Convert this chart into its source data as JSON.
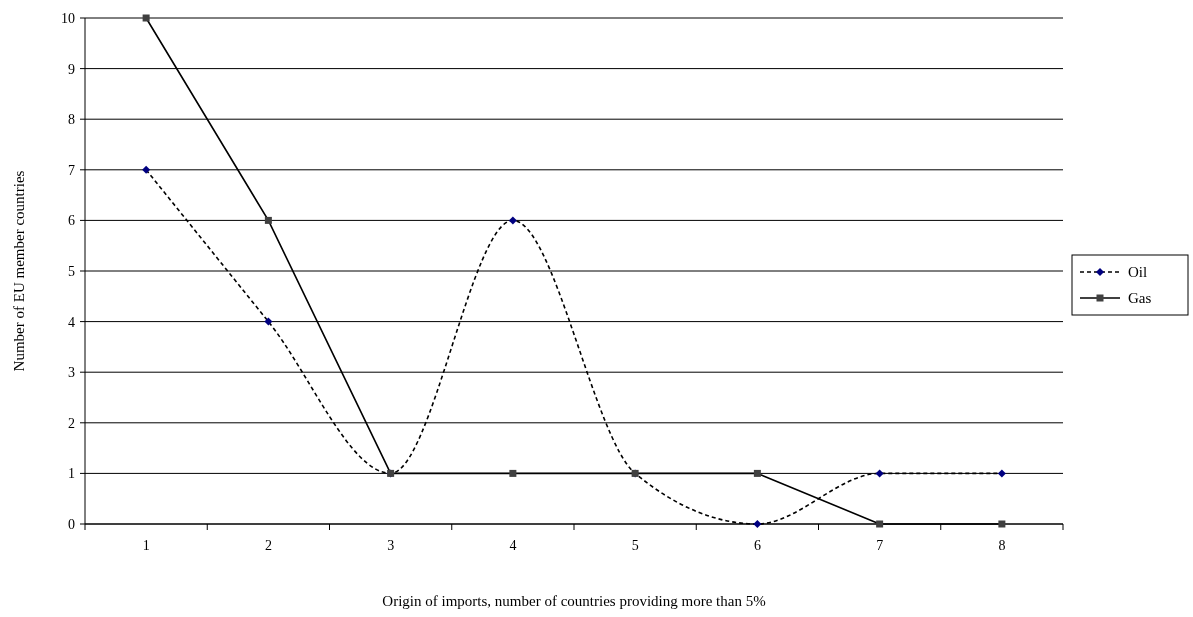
{
  "chart_data": {
    "type": "line",
    "xlabel": "Origin of imports, number of countries providing more than 5%",
    "ylabel": "Number of EU member countries",
    "categories": [
      "1",
      "2",
      "3",
      "4",
      "5",
      "6",
      "7",
      "8"
    ],
    "ylim": [
      0,
      10
    ],
    "yticks": [
      0,
      1,
      2,
      3,
      4,
      5,
      6,
      7,
      8,
      9,
      10
    ],
    "grid": "y",
    "legend": "right",
    "series": [
      {
        "name": "Oil",
        "color": "#000080",
        "values": [
          7,
          4,
          1,
          6,
          1,
          0,
          1,
          1
        ],
        "marker": "diamond",
        "line_style": "dashed"
      },
      {
        "name": "Gas",
        "color": "#404040",
        "values": [
          10,
          6,
          1,
          1,
          1,
          1,
          0,
          0
        ],
        "marker": "square",
        "line_style": "solid"
      }
    ]
  }
}
